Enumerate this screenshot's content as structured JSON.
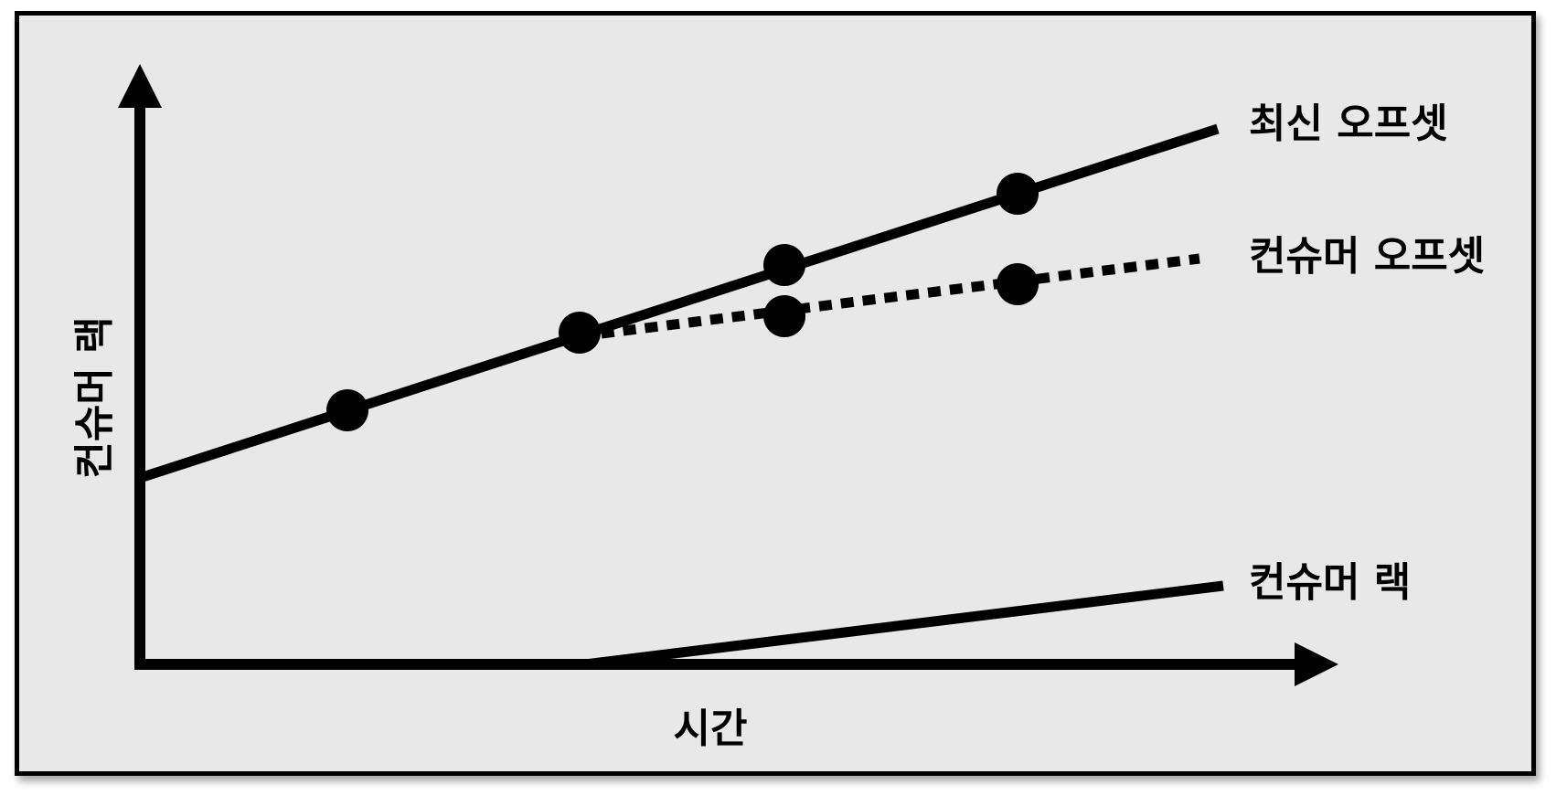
{
  "axes": {
    "x_label": "시간",
    "y_label": "컨슈머 랙"
  },
  "lines": {
    "latest_offset": {
      "label": "최신 오프셋",
      "style": "solid",
      "color": "#000000"
    },
    "consumer_offset": {
      "label": "컨슈머 오프셋",
      "style": "dotted",
      "color": "#000000"
    },
    "consumer_lag": {
      "label": "컨슈머 랙",
      "style": "solid",
      "color": "#000000"
    }
  },
  "colors": {
    "background": "#e8e8e8",
    "border": "#000000",
    "ink": "#000000"
  }
}
